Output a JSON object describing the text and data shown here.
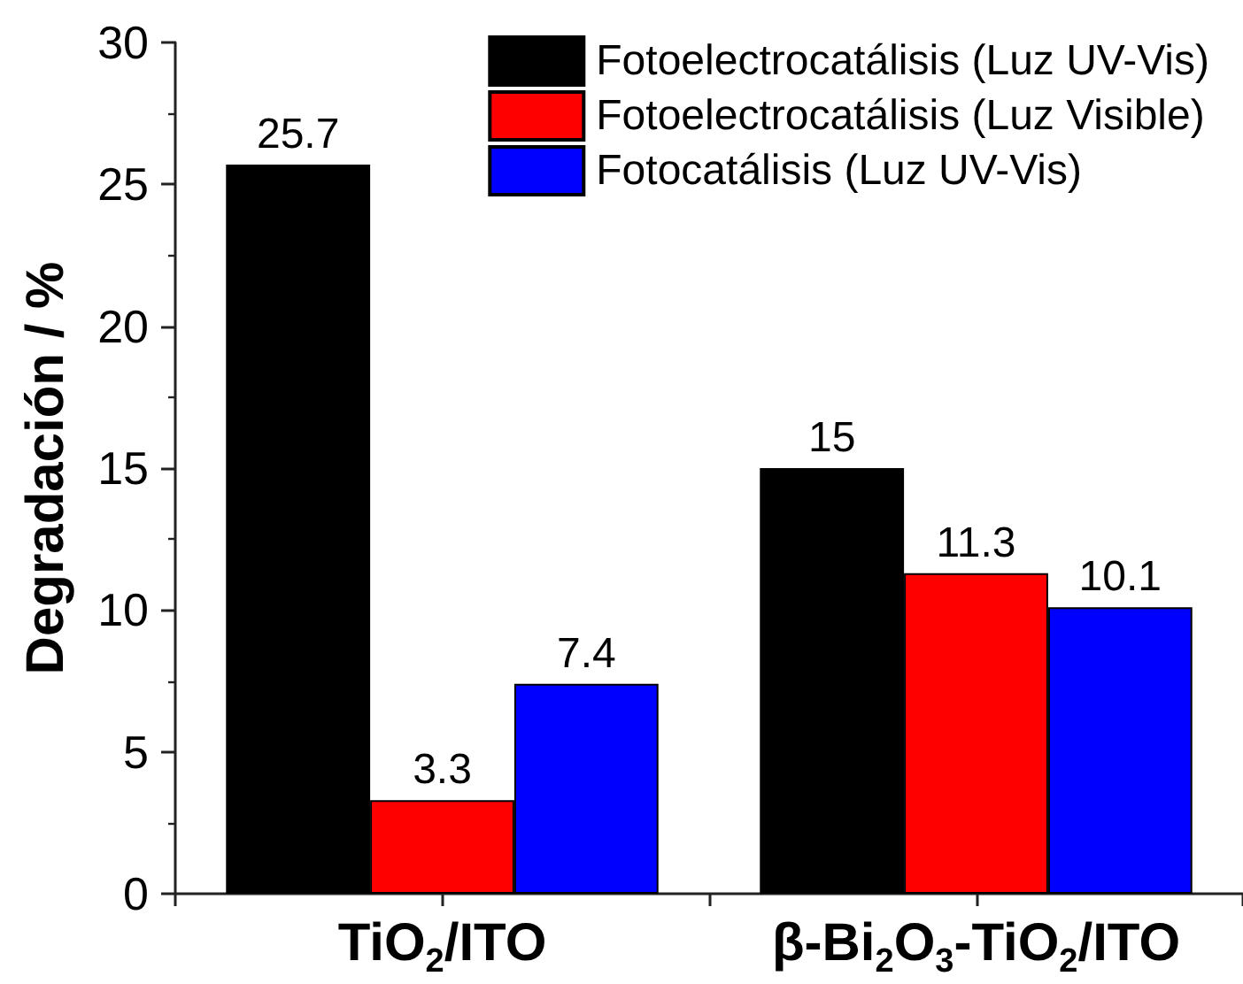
{
  "chart_data": {
    "type": "bar",
    "categories": [
      "TiO$_{2}$/ITO",
      "β-Bi$_{2}$O$_{3}$-TiO$_{2}$/ITO"
    ],
    "ylabel": "Degradación / %",
    "series": [
      {
        "name": "Fotoelectrocatálisis (Luz UV-Vis)",
        "color": "#000000",
        "values": [
          25.7,
          15
        ]
      },
      {
        "name": "Fotoelectrocatálisis (Luz Visible)",
        "color": "#ff0000",
        "values": [
          3.3,
          11.3
        ]
      },
      {
        "name": "Fotocatálisis (Luz UV-Vis)",
        "color": "#0000ff",
        "values": [
          7.4,
          10.1
        ]
      }
    ],
    "ylim": [
      0,
      30
    ],
    "yticks": [
      0,
      5,
      10,
      15,
      20,
      25,
      30
    ],
    "data_labels": true,
    "legend": "top right",
    "grid": false
  }
}
